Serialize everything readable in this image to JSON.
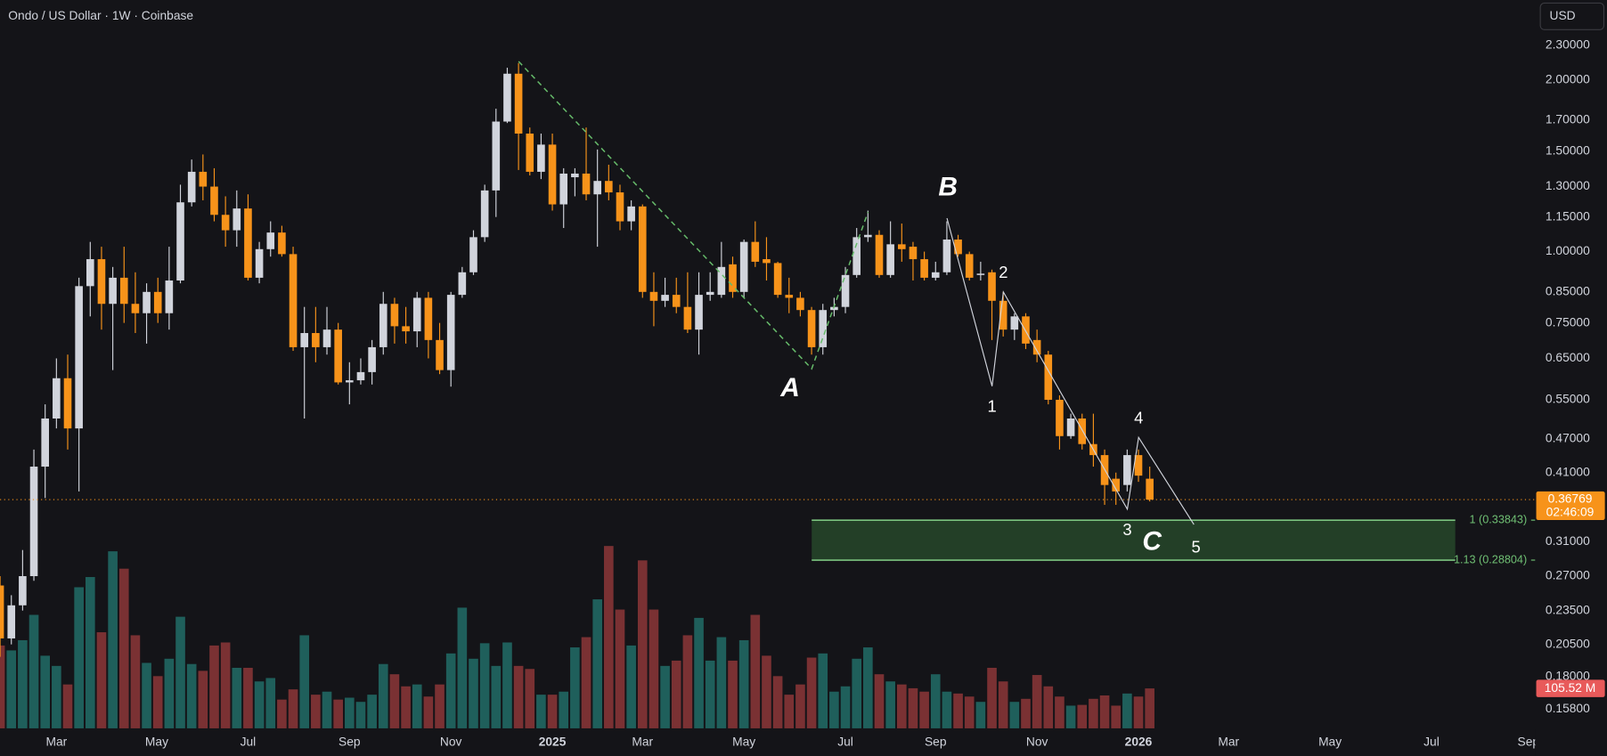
{
  "header": {
    "title": "Ondo / US Dollar · 1W · Coinbase",
    "currency": "USD"
  },
  "chart_data": {
    "type": "candlestick",
    "log": true,
    "grid": false,
    "ylim": [
      0.1455,
      2.76
    ],
    "yticks": [
      {
        "value": 2.3,
        "label": "2.30000"
      },
      {
        "value": 2.0,
        "label": "2.00000"
      },
      {
        "value": 1.7,
        "label": "1.70000"
      },
      {
        "value": 1.5,
        "label": "1.50000"
      },
      {
        "value": 1.3,
        "label": "1.30000"
      },
      {
        "value": 1.15,
        "label": "1.15000"
      },
      {
        "value": 1.0,
        "label": "1.00000"
      },
      {
        "value": 0.85,
        "label": "0.85000"
      },
      {
        "value": 0.75,
        "label": "0.75000"
      },
      {
        "value": 0.65,
        "label": "0.65000"
      },
      {
        "value": 0.55,
        "label": "0.55000"
      },
      {
        "value": 0.47,
        "label": "0.47000"
      },
      {
        "value": 0.41,
        "label": "0.41000"
      },
      {
        "value": 0.31,
        "label": "0.31000"
      },
      {
        "value": 0.27,
        "label": "0.27000"
      },
      {
        "value": 0.235,
        "label": "0.23500"
      },
      {
        "value": 0.205,
        "label": "0.20500"
      },
      {
        "value": 0.18,
        "label": "0.18000"
      },
      {
        "value": 0.158,
        "label": "0.15800"
      }
    ],
    "xlim": [
      0,
      136.2
    ],
    "xticks": [
      {
        "value": 5,
        "label": "Mar"
      },
      {
        "value": 13.9,
        "label": "May"
      },
      {
        "value": 22,
        "label": "Jul"
      },
      {
        "value": 31,
        "label": "Sep"
      },
      {
        "value": 40,
        "label": "Nov"
      },
      {
        "value": 49,
        "label": "2025"
      },
      {
        "value": 57,
        "label": "Mar"
      },
      {
        "value": 66,
        "label": "May"
      },
      {
        "value": 75,
        "label": "Jul"
      },
      {
        "value": 83,
        "label": "Sep"
      },
      {
        "value": 92,
        "label": "Nov"
      },
      {
        "value": 101,
        "label": "2026"
      },
      {
        "value": 109,
        "label": "Mar"
      },
      {
        "value": 118,
        "label": "May"
      },
      {
        "value": 127,
        "label": "Jul"
      },
      {
        "value": 135.6,
        "label": "Sep"
      }
    ],
    "up_color": "#d1d4dc",
    "down_color": "#f7931a",
    "volume_up_color": "#1f5f5b",
    "volume_down_color": "#7a3133",
    "open": [
      0.26,
      0.21,
      0.24,
      0.27,
      0.42,
      0.51,
      0.6,
      0.49,
      0.87,
      0.97,
      0.81,
      0.9,
      0.81,
      0.78,
      0.85,
      0.78,
      0.89,
      1.22,
      1.38,
      1.3,
      1.16,
      1.09,
      1.19,
      0.9,
      1.01,
      1.08,
      0.99,
      0.68,
      0.72,
      0.68,
      0.73,
      0.59,
      0.595,
      0.615,
      0.68,
      0.81,
      0.74,
      0.725,
      0.83,
      0.7,
      0.62,
      0.84,
      0.92,
      1.06,
      1.28,
      1.69,
      2.05,
      1.61,
      1.38,
      1.54,
      1.21,
      1.35,
      1.37,
      1.26,
      1.33,
      1.27,
      1.13,
      1.2,
      0.85,
      0.82,
      0.84,
      0.8,
      0.73,
      0.84,
      0.84,
      0.95,
      0.85,
      1.04,
      0.97,
      0.955,
      0.84,
      0.83,
      0.79,
      0.68,
      0.79,
      0.8,
      0.91,
      1.06,
      1.07,
      0.91,
      1.03,
      1.02,
      0.97,
      0.9,
      0.92,
      1.05,
      0.99,
      0.91,
      0.92,
      0.82,
      0.73,
      0.77,
      0.7,
      0.66,
      0.55,
      0.475,
      0.51,
      0.46,
      0.44,
      0.4,
      0.39,
      0.44,
      0.4
    ],
    "high": [
      0.27,
      0.25,
      0.3,
      0.45,
      0.54,
      0.65,
      0.66,
      0.9,
      1.04,
      1.02,
      0.94,
      1.02,
      0.92,
      0.88,
      0.9,
      1.02,
      1.31,
      1.45,
      1.48,
      1.4,
      1.25,
      1.28,
      1.26,
      1.04,
      1.13,
      1.11,
      1.02,
      0.8,
      0.8,
      0.8,
      0.75,
      0.64,
      0.65,
      0.7,
      0.85,
      0.83,
      0.8,
      0.85,
      0.85,
      0.75,
      0.85,
      0.94,
      1.09,
      1.31,
      1.78,
      2.1,
      2.14,
      1.65,
      1.61,
      1.61,
      1.4,
      1.4,
      1.65,
      1.51,
      1.42,
      1.31,
      1.23,
      1.21,
      0.92,
      0.9,
      0.9,
      0.92,
      0.92,
      0.92,
      1.04,
      0.98,
      1.05,
      1.13,
      1.06,
      0.96,
      0.9,
      0.85,
      0.8,
      0.81,
      0.83,
      0.94,
      1.1,
      1.18,
      1.09,
      1.13,
      1.12,
      1.04,
      1.0,
      0.96,
      1.13,
      1.07,
      1.0,
      0.96,
      0.93,
      0.85,
      0.78,
      0.78,
      0.73,
      0.67,
      0.56,
      0.52,
      0.52,
      0.52,
      0.45,
      0.41,
      0.45,
      0.45,
      0.42
    ],
    "low": [
      0.195,
      0.205,
      0.235,
      0.265,
      0.37,
      0.49,
      0.45,
      0.38,
      0.77,
      0.73,
      0.62,
      0.75,
      0.72,
      0.69,
      0.75,
      0.73,
      0.88,
      1.2,
      1.23,
      1.13,
      1.02,
      1.02,
      0.89,
      0.88,
      0.98,
      0.98,
      0.67,
      0.51,
      0.64,
      0.66,
      0.585,
      0.54,
      0.585,
      0.585,
      0.66,
      0.69,
      0.69,
      0.68,
      0.65,
      0.61,
      0.58,
      0.83,
      0.91,
      1.04,
      1.15,
      1.68,
      1.39,
      1.36,
      1.34,
      1.18,
      1.1,
      1.25,
      1.23,
      1.02,
      1.23,
      1.09,
      1.09,
      0.83,
      0.74,
      0.8,
      0.78,
      0.72,
      0.66,
      0.82,
      0.83,
      0.83,
      0.83,
      0.94,
      0.89,
      0.83,
      0.78,
      0.77,
      0.66,
      0.66,
      0.77,
      0.78,
      0.9,
      1.04,
      0.9,
      0.9,
      0.96,
      0.89,
      0.89,
      0.89,
      0.91,
      0.98,
      0.89,
      0.89,
      0.7,
      0.71,
      0.7,
      0.675,
      0.64,
      0.54,
      0.45,
      0.47,
      0.45,
      0.42,
      0.36,
      0.36,
      0.38,
      0.395,
      0.365
    ],
    "close": [
      0.21,
      0.24,
      0.27,
      0.42,
      0.51,
      0.6,
      0.49,
      0.87,
      0.97,
      0.81,
      0.9,
      0.81,
      0.78,
      0.85,
      0.78,
      0.89,
      1.22,
      1.38,
      1.3,
      1.16,
      1.09,
      1.19,
      0.9,
      1.01,
      1.08,
      0.99,
      0.68,
      0.72,
      0.68,
      0.73,
      0.59,
      0.595,
      0.615,
      0.68,
      0.81,
      0.74,
      0.725,
      0.83,
      0.7,
      0.62,
      0.84,
      0.92,
      1.06,
      1.28,
      1.69,
      2.05,
      1.61,
      1.38,
      1.54,
      1.21,
      1.37,
      1.37,
      1.26,
      1.33,
      1.27,
      1.13,
      1.2,
      0.85,
      0.82,
      0.84,
      0.8,
      0.73,
      0.84,
      0.85,
      0.94,
      0.85,
      1.04,
      0.96,
      0.955,
      0.84,
      0.83,
      0.79,
      0.68,
      0.79,
      0.8,
      0.91,
      1.06,
      1.07,
      0.91,
      1.03,
      1.01,
      0.97,
      0.9,
      0.92,
      1.05,
      0.99,
      0.9,
      0.915,
      0.82,
      0.73,
      0.77,
      0.69,
      0.66,
      0.55,
      0.475,
      0.51,
      0.46,
      0.44,
      0.39,
      0.38,
      0.44,
      0.405,
      0.36769
    ],
    "volume": [
      219,
      206,
      233,
      300,
      192,
      165,
      116,
      373,
      400,
      254,
      468,
      422,
      246,
      173,
      138,
      184,
      295,
      170,
      152,
      219,
      227,
      160,
      160,
      124,
      133,
      76,
      103,
      246,
      89,
      97,
      76,
      81,
      70,
      89,
      170,
      143,
      111,
      116,
      84,
      116,
      198,
      319,
      184,
      225,
      165,
      227,
      165,
      157,
      89,
      89,
      97,
      214,
      241,
      341,
      482,
      314,
      219,
      444,
      314,
      165,
      179,
      246,
      292,
      179,
      241,
      179,
      233,
      300,
      192,
      138,
      89,
      116,
      187,
      198,
      97,
      111,
      184,
      214,
      143,
      124,
      116,
      106,
      97,
      143,
      97,
      92,
      84,
      70,
      160,
      124,
      70,
      78,
      141,
      111,
      84,
      60,
      62,
      78,
      87,
      60,
      92,
      84,
      105.52
    ],
    "volume_label": "105.52 M",
    "countdown": "02:46:09",
    "fib_levels": [
      {
        "value": 0.33843,
        "label": "1 (0.33843)"
      },
      {
        "value": 0.28804,
        "label": "1.13 (0.28804)"
      }
    ],
    "wave_labels": [
      "A",
      "B",
      "C",
      "1",
      "2",
      "3",
      "4",
      "5"
    ]
  }
}
